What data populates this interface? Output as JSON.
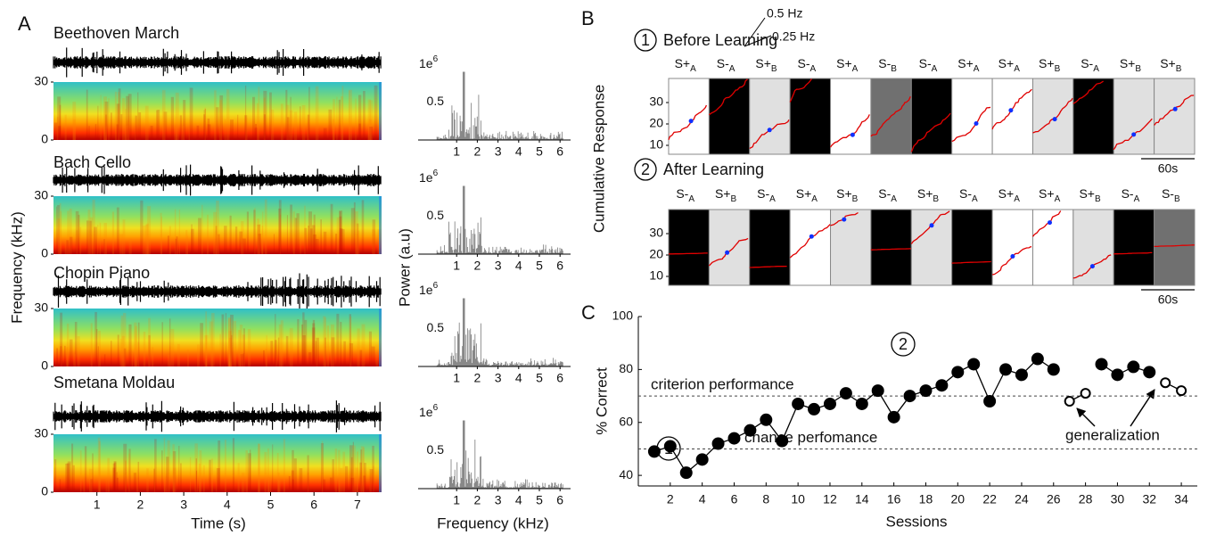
{
  "panel_a": {
    "label": "A",
    "pieces": [
      "Beethoven March",
      "Bach Cello",
      "Chopin Piano",
      "Smetana Moldau"
    ],
    "spectrogram_ylabel": "Frequency (kHz)",
    "spectrogram_ylim": [
      0,
      30
    ],
    "spectrogram_yticks": [
      0,
      30
    ],
    "spectrogram_xticks": [
      1,
      2,
      3,
      4,
      5,
      6,
      7
    ],
    "spectrogram_xlabel": "Time (s)",
    "power_ylabel": "Power (a.u)",
    "power_yticks": [
      0.5
    ],
    "power_scale": {
      "base": "1e",
      "exponent": "6"
    },
    "power_xticks": [
      1,
      2,
      3,
      4,
      5,
      6
    ],
    "power_xlabel": "Frequency (kHz)"
  },
  "panel_b": {
    "label": "B",
    "scale_fast": "0.5 Hz",
    "scale_slow": "0.25 Hz",
    "ylabel": "Cumulative Response",
    "yticks": [
      10,
      20,
      30
    ],
    "time_bar": "60s",
    "stimulus_colors": {
      "S+A": "#ffffff",
      "S-A": "#000000",
      "S+B": "#e0e0e0",
      "S-B": "#707070"
    },
    "rows": [
      {
        "number": "1",
        "title": "Before Learning",
        "stimuli": [
          {
            "sign": "S+",
            "sub": "A"
          },
          {
            "sign": "S-",
            "sub": "A"
          },
          {
            "sign": "S+",
            "sub": "B"
          },
          {
            "sign": "S-",
            "sub": "A"
          },
          {
            "sign": "S+",
            "sub": "A"
          },
          {
            "sign": "S-",
            "sub": "B"
          },
          {
            "sign": "S-",
            "sub": "A"
          },
          {
            "sign": "S+",
            "sub": "A"
          },
          {
            "sign": "S+",
            "sub": "A"
          },
          {
            "sign": "S+",
            "sub": "B"
          },
          {
            "sign": "S-",
            "sub": "A"
          },
          {
            "sign": "S+",
            "sub": "B"
          },
          {
            "sign": "S+",
            "sub": "B"
          }
        ]
      },
      {
        "number": "2",
        "title": "After Learning",
        "stimuli": [
          {
            "sign": "S-",
            "sub": "A"
          },
          {
            "sign": "S+",
            "sub": "B"
          },
          {
            "sign": "S-",
            "sub": "A"
          },
          {
            "sign": "S+",
            "sub": "A"
          },
          {
            "sign": "S+",
            "sub": "B"
          },
          {
            "sign": "S-",
            "sub": "A"
          },
          {
            "sign": "S+",
            "sub": "B"
          },
          {
            "sign": "S-",
            "sub": "A"
          },
          {
            "sign": "S+",
            "sub": "A"
          },
          {
            "sign": "S+",
            "sub": "A"
          },
          {
            "sign": "S+",
            "sub": "B"
          },
          {
            "sign": "S-",
            "sub": "A"
          },
          {
            "sign": "S-",
            "sub": "B"
          }
        ]
      }
    ]
  },
  "chart_data": {
    "type": "line",
    "label": "C",
    "xlabel": "Sessions",
    "ylabel": "% Correct",
    "x": [
      1,
      2,
      3,
      4,
      5,
      6,
      7,
      8,
      9,
      10,
      11,
      12,
      13,
      14,
      15,
      16,
      17,
      18,
      19,
      20,
      21,
      22,
      23,
      24,
      25,
      26,
      27,
      28,
      29,
      30,
      31,
      32,
      33,
      34
    ],
    "series": [
      {
        "color": "#000000",
        "marker": "filled",
        "values": [
          49,
          51,
          41,
          46,
          52,
          54,
          57,
          61,
          53,
          67,
          65,
          67,
          71,
          67,
          72,
          62,
          70,
          72,
          74,
          79,
          82,
          68,
          80,
          78,
          84,
          80,
          null,
          null,
          82,
          78,
          81,
          79,
          null,
          null
        ]
      },
      {
        "color": "#000000",
        "marker": "open",
        "values": [
          null,
          null,
          null,
          null,
          null,
          null,
          null,
          null,
          null,
          null,
          null,
          null,
          null,
          null,
          null,
          null,
          null,
          null,
          null,
          null,
          null,
          null,
          null,
          null,
          null,
          null,
          68,
          71,
          null,
          null,
          null,
          null,
          75,
          72
        ]
      }
    ],
    "xlim": [
      0,
      35
    ],
    "ylim": [
      36,
      100
    ],
    "xticks": [
      2,
      4,
      6,
      8,
      10,
      12,
      14,
      16,
      18,
      20,
      22,
      24,
      26,
      28,
      30,
      32,
      34
    ],
    "yticks": [
      40,
      60,
      80,
      100
    ],
    "reference_lines": [
      {
        "value": 70,
        "label": "criterion performance"
      },
      {
        "value": 50,
        "label": "chance perfomance"
      }
    ],
    "annotations": {
      "generalization": "generalization",
      "marker_1": "1",
      "marker_2": "2"
    }
  }
}
